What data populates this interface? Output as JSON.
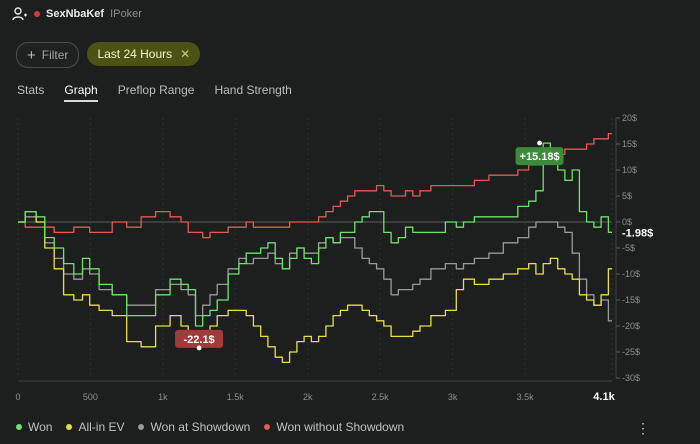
{
  "header": {
    "player_name": "SexNbaKef",
    "site": "IPoker",
    "user_icon": "user-icon",
    "flag_color": "#d23b3b"
  },
  "filters": {
    "filter_label": "Filter",
    "chip_label": "Last 24 Hours",
    "chip_close_icon": "close-icon"
  },
  "tabs": [
    {
      "label": "Stats"
    },
    {
      "label": "Graph"
    },
    {
      "label": "Preflop Range"
    },
    {
      "label": "Hand Strength"
    }
  ],
  "active_tab": "Graph",
  "chart_data": {
    "type": "line",
    "x_ticks": [
      "0",
      "500",
      "1k",
      "1.5k",
      "2k",
      "2.5k",
      "3k",
      "3.5k",
      "4.1k"
    ],
    "x_tick_values": [
      0,
      500,
      1000,
      1500,
      2000,
      2500,
      3000,
      3500,
      4100
    ],
    "y_ticks": [
      "20$",
      "15$",
      "10$",
      "5$",
      "0$",
      "-5$",
      "-10$",
      "-15$",
      "-20$",
      "-25$",
      "-30$"
    ],
    "y_tick_values": [
      20,
      15,
      10,
      5,
      0,
      -5,
      -10,
      -15,
      -20,
      -25,
      -30
    ],
    "xlim": [
      0,
      4100
    ],
    "ylim": [
      -30,
      20
    ],
    "annotations": [
      {
        "text": "+15.18$",
        "x": 3600,
        "y": 15.18,
        "color": "#3d8a3a"
      },
      {
        "text": "-22.1$",
        "x": 1250,
        "y": -22.1,
        "color": "#a33a3a"
      },
      {
        "text": "-1.98$",
        "x": 4100,
        "y": -1.98,
        "color": "transparent"
      }
    ],
    "series": [
      {
        "name": "Won",
        "color": "#6ee36a",
        "x": [
          0,
          100,
          150,
          220,
          280,
          350,
          420,
          470,
          520,
          600,
          700,
          800,
          900,
          1000,
          1100,
          1150,
          1200,
          1250,
          1300,
          1350,
          1400,
          1500,
          1550,
          1600,
          1650,
          1700,
          1750,
          1800,
          1850,
          1900,
          1950,
          2000,
          2050,
          2100,
          2150,
          2200,
          2250,
          2300,
          2350,
          2400,
          2450,
          2500,
          2550,
          2600,
          2650,
          2700,
          2750,
          2800,
          2900,
          3000,
          3050,
          3100,
          3200,
          3300,
          3400,
          3500,
          3550,
          3600,
          3650,
          3700,
          3750,
          3800,
          3850,
          3900,
          3950,
          4000,
          4050,
          4100
        ],
        "y": [
          0,
          2,
          1,
          -3,
          -5,
          -8,
          -10,
          -7,
          -9,
          -12,
          -14,
          -18,
          -18,
          -14,
          -11,
          -12,
          -13,
          -20,
          -18,
          -17,
          -15,
          -10,
          -8,
          -6,
          -6,
          -5,
          -4,
          -7,
          -9,
          -7,
          -5,
          -7,
          -8,
          -5,
          -3,
          -4,
          -2,
          -2,
          0,
          1,
          2,
          2,
          -2,
          -4,
          -3,
          -1,
          -2,
          -2,
          -2,
          0,
          -1,
          0,
          1,
          1,
          1,
          3,
          4,
          6,
          15.18,
          14,
          10,
          8,
          10,
          2,
          0,
          -1,
          1,
          -1.98
        ]
      },
      {
        "name": "All-in EV",
        "color": "#e6df4a",
        "x": [
          0,
          100,
          150,
          220,
          280,
          350,
          420,
          470,
          520,
          600,
          700,
          800,
          900,
          1000,
          1100,
          1150,
          1200,
          1250,
          1300,
          1350,
          1400,
          1500,
          1550,
          1600,
          1650,
          1700,
          1750,
          1800,
          1850,
          1900,
          1950,
          2000,
          2050,
          2100,
          2150,
          2200,
          2250,
          2300,
          2350,
          2400,
          2450,
          2500,
          2550,
          2600,
          2650,
          2700,
          2750,
          2800,
          2900,
          3000,
          3050,
          3100,
          3200,
          3300,
          3400,
          3500,
          3550,
          3600,
          3650,
          3700,
          3750,
          3800,
          3850,
          3900,
          3950,
          4000,
          4050,
          4100
        ],
        "y": [
          0,
          2,
          0,
          -5,
          -9,
          -14,
          -15,
          -14,
          -16,
          -17,
          -18,
          -23,
          -24,
          -20,
          -18,
          -20,
          -21,
          -22.1,
          -21,
          -20,
          -18,
          -17,
          -17,
          -18,
          -20,
          -22,
          -24,
          -26,
          -27,
          -25,
          -23,
          -22,
          -23,
          -22,
          -20,
          -18,
          -17,
          -16,
          -16,
          -17,
          -18,
          -19,
          -20,
          -22,
          -22,
          -22,
          -21,
          -20,
          -18,
          -17,
          -13,
          -11,
          -12,
          -11,
          -10,
          -9,
          -8,
          -10,
          -8,
          -7,
          -9,
          -10,
          -11,
          -14,
          -15,
          -16,
          -14,
          -9
        ]
      },
      {
        "name": "Won at Showdown",
        "color": "#9a9a9a",
        "x": [
          0,
          100,
          150,
          220,
          280,
          350,
          420,
          470,
          520,
          600,
          700,
          800,
          900,
          1000,
          1100,
          1150,
          1200,
          1250,
          1300,
          1350,
          1400,
          1500,
          1550,
          1600,
          1650,
          1700,
          1750,
          1800,
          1850,
          1900,
          1950,
          2000,
          2050,
          2100,
          2150,
          2200,
          2250,
          2300,
          2350,
          2400,
          2450,
          2500,
          2550,
          2600,
          2650,
          2700,
          2750,
          2800,
          2900,
          3000,
          3050,
          3100,
          3200,
          3300,
          3400,
          3500,
          3550,
          3600,
          3650,
          3700,
          3750,
          3800,
          3850,
          3900,
          3950,
          4000,
          4050,
          4100
        ],
        "y": [
          0,
          1,
          0,
          -4,
          -7,
          -10,
          -11,
          -9,
          -10,
          -13,
          -14,
          -16,
          -16,
          -13,
          -12,
          -13,
          -14,
          -18,
          -16,
          -14,
          -12,
          -9,
          -7,
          -8,
          -7,
          -7,
          -6,
          -8,
          -9,
          -6,
          -5,
          -6,
          -6,
          -4,
          -3,
          -4,
          -3,
          -3,
          -5,
          -7,
          -8,
          -9,
          -11,
          -14,
          -13,
          -13,
          -12,
          -11,
          -9,
          -8,
          -9,
          -8,
          -7,
          -6,
          -4,
          -3,
          -1,
          0,
          0,
          0,
          -1,
          -2,
          -6,
          -11,
          -14,
          -16,
          -15,
          -19
        ]
      },
      {
        "name": "Won without Showdown",
        "color": "#e65a52",
        "x": [
          0,
          100,
          150,
          220,
          280,
          350,
          420,
          470,
          520,
          600,
          700,
          800,
          900,
          1000,
          1100,
          1150,
          1200,
          1250,
          1300,
          1350,
          1400,
          1500,
          1550,
          1600,
          1650,
          1700,
          1750,
          1800,
          1850,
          1900,
          1950,
          2000,
          2050,
          2100,
          2150,
          2200,
          2250,
          2300,
          2350,
          2400,
          2450,
          2500,
          2550,
          2600,
          2650,
          2700,
          2750,
          2800,
          2900,
          3000,
          3050,
          3100,
          3200,
          3300,
          3400,
          3500,
          3550,
          3600,
          3650,
          3700,
          3750,
          3800,
          3850,
          3900,
          3950,
          4000,
          4050,
          4100
        ],
        "y": [
          0,
          -1,
          -1,
          -1,
          -2,
          -2,
          -1,
          -1,
          -2,
          -2,
          0,
          -1,
          1,
          2,
          1,
          0,
          -2,
          -2,
          -3,
          -2,
          -2,
          -1,
          -1,
          0,
          -1,
          -1,
          -1,
          -1,
          -1,
          0,
          0,
          0,
          0,
          1,
          2,
          3,
          4,
          5,
          6,
          6,
          6,
          7,
          6,
          5,
          5,
          6,
          5,
          6,
          7,
          7,
          7,
          7,
          8,
          9,
          9,
          10,
          11,
          11,
          12,
          13,
          13,
          14,
          14,
          14,
          15,
          16,
          16,
          17
        ]
      }
    ]
  },
  "legend": [
    {
      "label": "Won",
      "color": "#6ee36a"
    },
    {
      "label": "All-in EV",
      "color": "#e6df4a"
    },
    {
      "label": "Won at Showdown",
      "color": "#9a9a9a"
    },
    {
      "label": "Won without Showdown",
      "color": "#e65a52"
    }
  ],
  "more_icon": "more-vertical-icon"
}
